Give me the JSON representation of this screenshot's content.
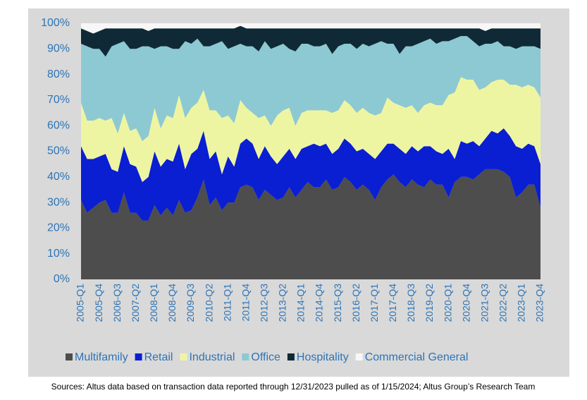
{
  "chart_data": {
    "type": "stacked_area",
    "categories": [
      "2005-Q1",
      null,
      null,
      "2005-Q4",
      null,
      null,
      "2006-Q3",
      null,
      null,
      "2007-Q2",
      null,
      null,
      "2008-Q1",
      null,
      null,
      "2008-Q4",
      null,
      null,
      "2009-Q3",
      null,
      null,
      "2010-Q2",
      null,
      null,
      "2011-Q1",
      null,
      null,
      "2011-Q4",
      null,
      null,
      "2012-Q3",
      null,
      null,
      "2013-Q2",
      null,
      null,
      "2014-Q1",
      null,
      null,
      "2014-Q4",
      null,
      null,
      "2015-Q3",
      null,
      null,
      "2016-Q2",
      null,
      null,
      "2017-Q1",
      null,
      null,
      "2017-Q4",
      null,
      null,
      "2018-Q3",
      null,
      null,
      "2019-Q2",
      null,
      null,
      "2020-Q1",
      null,
      null,
      "2020-Q4",
      null,
      null,
      "2021-Q3",
      null,
      null,
      "2022-Q2",
      null,
      null,
      "2023-Q1",
      null,
      null,
      "2023-Q4"
    ],
    "series": [
      {
        "name": "Multifamily",
        "color": "#4d4d4d",
        "values": [
          31,
          26,
          28,
          30,
          31,
          26,
          26,
          34,
          26,
          26,
          23,
          23,
          29,
          25,
          28,
          25,
          31,
          26,
          27,
          32,
          39,
          29,
          32,
          27,
          30,
          30,
          36,
          37,
          36,
          31,
          35,
          33,
          31,
          32,
          36,
          32,
          35,
          38,
          36,
          36,
          39,
          35,
          36,
          40,
          38,
          35,
          37,
          35,
          31,
          36,
          39,
          41,
          38,
          36,
          39,
          37,
          36,
          39,
          37,
          37,
          32,
          38,
          40,
          40,
          39,
          41,
          43,
          43,
          43,
          42,
          40,
          32,
          34,
          37,
          37,
          28
        ]
      },
      {
        "name": "Retail",
        "color": "#0a1ed2",
        "values": [
          21,
          21,
          19,
          18,
          18,
          17,
          16,
          18,
          19,
          18,
          15,
          17,
          21,
          19,
          19,
          21,
          22,
          17,
          22,
          19,
          19,
          18,
          18,
          14,
          18,
          14,
          17,
          18,
          17,
          16,
          17,
          15,
          14,
          16,
          15,
          15,
          16,
          14,
          17,
          16,
          14,
          14,
          15,
          15,
          15,
          15,
          14,
          14,
          16,
          14,
          14,
          12,
          13,
          13,
          13,
          13,
          16,
          13,
          13,
          12,
          19,
          9,
          14,
          13,
          15,
          11,
          12,
          15,
          14,
          17,
          16,
          20,
          17,
          16,
          15,
          17
        ]
      },
      {
        "name": "Industrial",
        "color": "#eef5a2",
        "values": [
          17,
          15,
          15,
          15,
          13,
          20,
          15,
          13,
          13,
          15,
          16,
          16,
          17,
          15,
          17,
          17,
          19,
          20,
          18,
          18,
          16,
          19,
          16,
          22,
          16,
          17,
          17,
          12,
          12,
          16,
          12,
          12,
          19,
          18,
          16,
          13,
          14,
          14,
          13,
          14,
          13,
          16,
          15,
          15,
          15,
          15,
          16,
          16,
          17,
          15,
          18,
          16,
          17,
          18,
          16,
          15,
          16,
          17,
          18,
          19,
          21,
          26,
          25,
          25,
          24,
          22,
          20,
          19,
          21,
          19,
          20,
          24,
          24,
          23,
          23,
          26
        ]
      },
      {
        "name": "Office",
        "color": "#8dc9d2",
        "values": [
          23,
          29,
          28,
          27,
          25,
          28,
          35,
          28,
          32,
          31,
          37,
          35,
          23,
          32,
          27,
          27,
          18,
          30,
          25,
          25,
          17,
          25,
          26,
          30,
          26,
          30,
          22,
          24,
          26,
          26,
          29,
          30,
          27,
          26,
          23,
          29,
          27,
          26,
          25,
          25,
          26,
          23,
          25,
          22,
          24,
          25,
          25,
          26,
          28,
          28,
          21,
          23,
          20,
          24,
          23,
          27,
          25,
          25,
          24,
          25,
          21,
          21,
          16,
          17,
          15,
          17,
          17,
          15,
          15,
          13,
          15,
          14,
          16,
          15,
          16,
          19
        ]
      },
      {
        "name": "Hospitality",
        "color": "#0f2a36",
        "values": [
          6,
          6,
          6,
          7,
          11,
          7,
          6,
          5,
          8,
          8,
          7,
          6,
          8,
          7,
          7,
          8,
          8,
          5,
          6,
          4,
          7,
          7,
          6,
          5,
          8,
          7,
          7,
          7,
          7,
          9,
          5,
          8,
          7,
          6,
          8,
          9,
          6,
          6,
          7,
          7,
          6,
          10,
          7,
          6,
          6,
          8,
          6,
          7,
          6,
          5,
          6,
          6,
          10,
          7,
          7,
          6,
          5,
          4,
          6,
          5,
          5,
          4,
          3,
          3,
          5,
          7,
          5,
          6,
          5,
          7,
          7,
          8,
          7,
          7,
          7,
          8
        ]
      },
      {
        "name": "Commercial General",
        "color": "#f7f7f7",
        "values": [
          2,
          3,
          4,
          3,
          2,
          2,
          2,
          2,
          2,
          2,
          2,
          3,
          2,
          2,
          2,
          2,
          2,
          2,
          2,
          2,
          2,
          2,
          2,
          2,
          2,
          2,
          1,
          2,
          2,
          2,
          2,
          2,
          2,
          2,
          2,
          2,
          2,
          2,
          2,
          2,
          2,
          2,
          2,
          2,
          2,
          2,
          2,
          2,
          2,
          2,
          2,
          2,
          2,
          2,
          2,
          2,
          2,
          2,
          2,
          2,
          2,
          2,
          2,
          2,
          2,
          2,
          3,
          2,
          2,
          2,
          2,
          2,
          2,
          2,
          2,
          2
        ]
      }
    ],
    "ylim": [
      0,
      100
    ],
    "yticks": [
      {
        "value": 0,
        "label": "0%"
      },
      {
        "value": 10,
        "label": "10%"
      },
      {
        "value": 20,
        "label": "20%"
      },
      {
        "value": 30,
        "label": "30%"
      },
      {
        "value": 40,
        "label": "40%"
      },
      {
        "value": 50,
        "label": "50%"
      },
      {
        "value": 60,
        "label": "60%"
      },
      {
        "value": 70,
        "label": "70%"
      },
      {
        "value": 80,
        "label": "80%"
      },
      {
        "value": 90,
        "label": "90%"
      },
      {
        "value": 100,
        "label": "100%"
      }
    ],
    "legend": "bottom",
    "source": "Sources: Altus data based on transaction data reported through 12/31/2023 pulled as of 1/15/2024; Altus Group’s Research Team"
  }
}
